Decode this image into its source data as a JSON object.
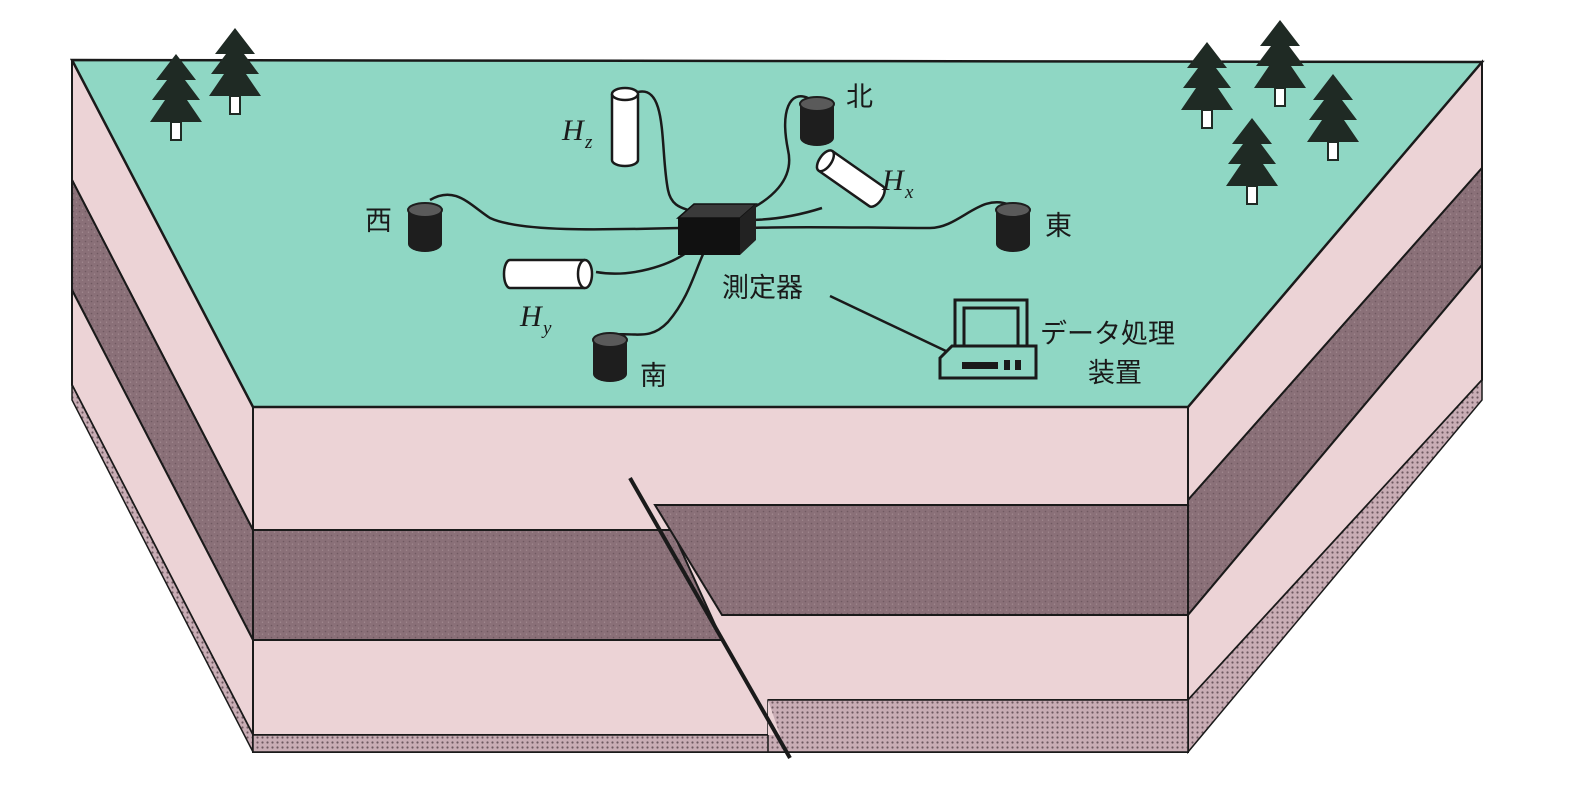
{
  "colors": {
    "ground_surface": "#8fd7c4",
    "pink_layer": "#ecd3d6",
    "dark_layer": "#8a7078",
    "dotted_base": "#b79aa3",
    "outline": "#1a1a1a"
  },
  "labels": {
    "north": "北",
    "south": "南",
    "east": "東",
    "west": "西",
    "instrument": "測定器",
    "processor_line1": "データ処理",
    "processor_line2": "装置"
  },
  "sensors": {
    "hz": {
      "main": "H",
      "sub": "z"
    },
    "hx": {
      "main": "H",
      "sub": "x"
    },
    "hy": {
      "main": "H",
      "sub": "y"
    }
  },
  "icons": [
    "tree-icon",
    "electrode-icon",
    "magnetometer-coil-icon",
    "measuring-device-icon",
    "computer-icon"
  ]
}
